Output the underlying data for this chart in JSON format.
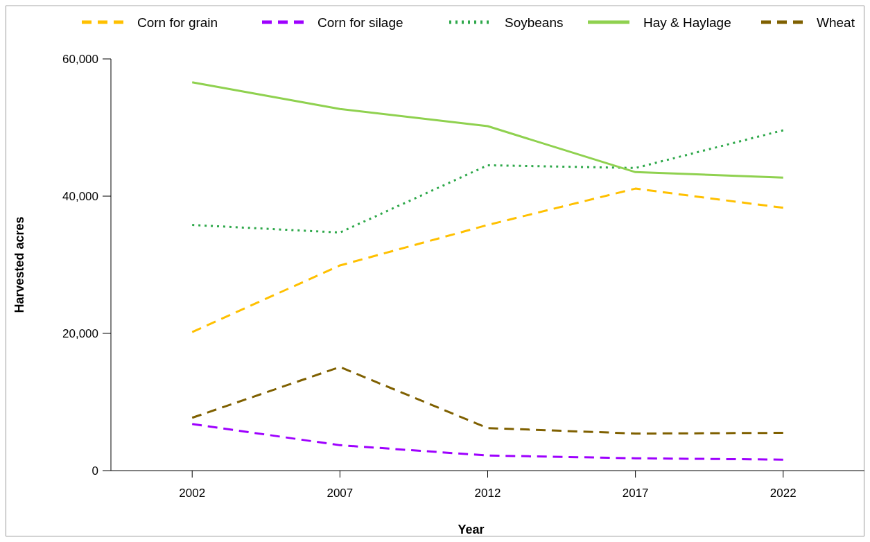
{
  "chart_data": {
    "type": "line",
    "xlabel": "Year",
    "ylabel": "Harvested acres",
    "categories": [
      "2002",
      "2007",
      "2012",
      "2017",
      "2022"
    ],
    "ylim": [
      0,
      60000
    ],
    "yticks": [
      {
        "value": 0,
        "label": "0"
      },
      {
        "value": 20000,
        "label": "20,000"
      },
      {
        "value": 40000,
        "label": "40,000"
      },
      {
        "value": 60000,
        "label": "60,000"
      }
    ],
    "grid": false,
    "legend": "top",
    "marker": "none",
    "series": [
      {
        "name": "Corn for grain",
        "color": "#ffc000",
        "line_style": "dashed",
        "values": [
          20200,
          29900,
          35800,
          41100,
          38300
        ]
      },
      {
        "name": "Corn for silage",
        "color": "#9e00ff",
        "line_style": "dashed",
        "values": [
          6800,
          3700,
          2200,
          1800,
          1600
        ]
      },
      {
        "name": "Soybeans",
        "color": "#2ea84a",
        "line_style": "dotted",
        "values": [
          35800,
          34700,
          44500,
          44100,
          49600
        ]
      },
      {
        "name": "Hay & Haylage",
        "color": "#8fd14f",
        "line_style": "solid",
        "values": [
          56600,
          52700,
          50200,
          43500,
          42700
        ]
      },
      {
        "name": "Wheat",
        "color": "#7f6000",
        "line_style": "dashed",
        "values": [
          7700,
          15100,
          6200,
          5400,
          5500
        ]
      }
    ]
  }
}
